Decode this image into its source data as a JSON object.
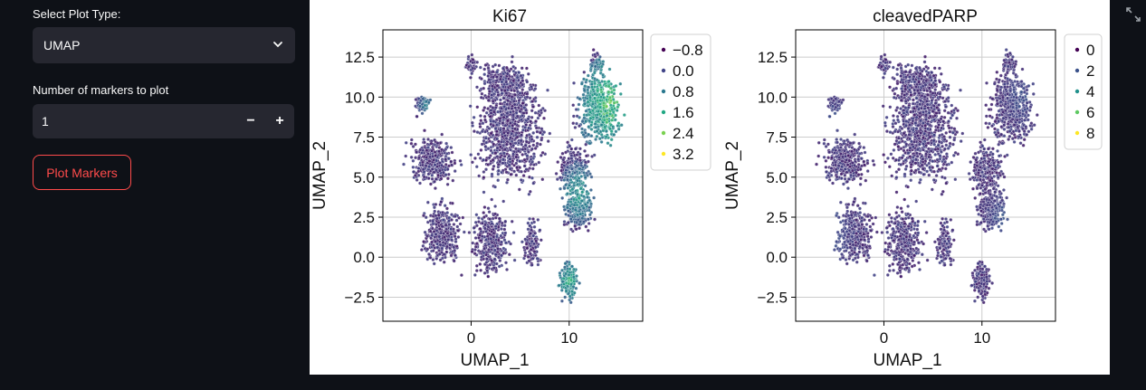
{
  "sidebar": {
    "plot_type_label": "Select Plot Type:",
    "plot_type_value": "UMAP",
    "markers_label": "Number of markers to plot",
    "markers_value": "1",
    "minus": "−",
    "plus": "+",
    "plot_button": "Plot Markers"
  },
  "colors": {
    "accent": "#ff4b4b",
    "background": "#0e1117",
    "widget": "#262730"
  },
  "chart_data": [
    {
      "type": "scatter",
      "title": "Ki67",
      "xlabel": "UMAP_1",
      "ylabel": "UMAP_2",
      "xlim": [
        -9,
        17.5
      ],
      "ylim": [
        -4,
        14.2
      ],
      "xticks": [
        0,
        10
      ],
      "yticks": [
        -2.5,
        0.0,
        2.5,
        5.0,
        7.5,
        10.0,
        12.5
      ],
      "ytick_labels": [
        "−2.5",
        "0.0",
        "2.5",
        "5.0",
        "7.5",
        "10.0",
        "12.5"
      ],
      "grid": true,
      "legend_position": "right-outside",
      "colormap": "viridis",
      "legend": [
        {
          "label": "−0.8",
          "color": "#440154"
        },
        {
          "label": "0.0",
          "color": "#414487"
        },
        {
          "label": "0.8",
          "color": "#2a788e"
        },
        {
          "label": "1.6",
          "color": "#22a884"
        },
        {
          "label": "2.4",
          "color": "#7ad151"
        },
        {
          "label": "3.2",
          "color": "#fde725"
        }
      ],
      "hot_regions": [
        {
          "x": 14,
          "y": 9.5,
          "r": 3.2,
          "v": 0.85
        },
        {
          "x": 11,
          "y": 4,
          "r": 2.0,
          "v": 0.65
        },
        {
          "x": 10,
          "y": -1.5,
          "r": 1.6,
          "v": 0.7
        },
        {
          "x": -4.5,
          "y": 9.5,
          "r": 1.0,
          "v": 0.5
        }
      ]
    },
    {
      "type": "scatter",
      "title": "cleavedPARP",
      "xlabel": "UMAP_1",
      "ylabel": "UMAP_2",
      "xlim": [
        -9,
        17.5
      ],
      "ylim": [
        -4,
        14.2
      ],
      "xticks": [
        0,
        10
      ],
      "yticks": [
        -2.5,
        0.0,
        2.5,
        5.0,
        7.5,
        10.0,
        12.5
      ],
      "ytick_labels": [
        "−2.5",
        "0.0",
        "2.5",
        "5.0",
        "7.5",
        "10.0",
        "12.5"
      ],
      "grid": true,
      "legend_position": "right-outside",
      "colormap": "viridis",
      "legend": [
        {
          "label": "0",
          "color": "#440154"
        },
        {
          "label": "2",
          "color": "#3b528b"
        },
        {
          "label": "4",
          "color": "#21918c"
        },
        {
          "label": "6",
          "color": "#5ec962"
        },
        {
          "label": "8",
          "color": "#fde725"
        }
      ],
      "hot_regions": [
        {
          "x": -6,
          "y": 1.5,
          "r": 3.0,
          "v": 0.35
        },
        {
          "x": -5,
          "y": 8.5,
          "r": 2.0,
          "v": 0.3
        },
        {
          "x": 12,
          "y": 2.5,
          "r": 2.2,
          "v": 0.3
        },
        {
          "x": 14,
          "y": 10,
          "r": 2.5,
          "v": 0.28
        }
      ]
    }
  ]
}
